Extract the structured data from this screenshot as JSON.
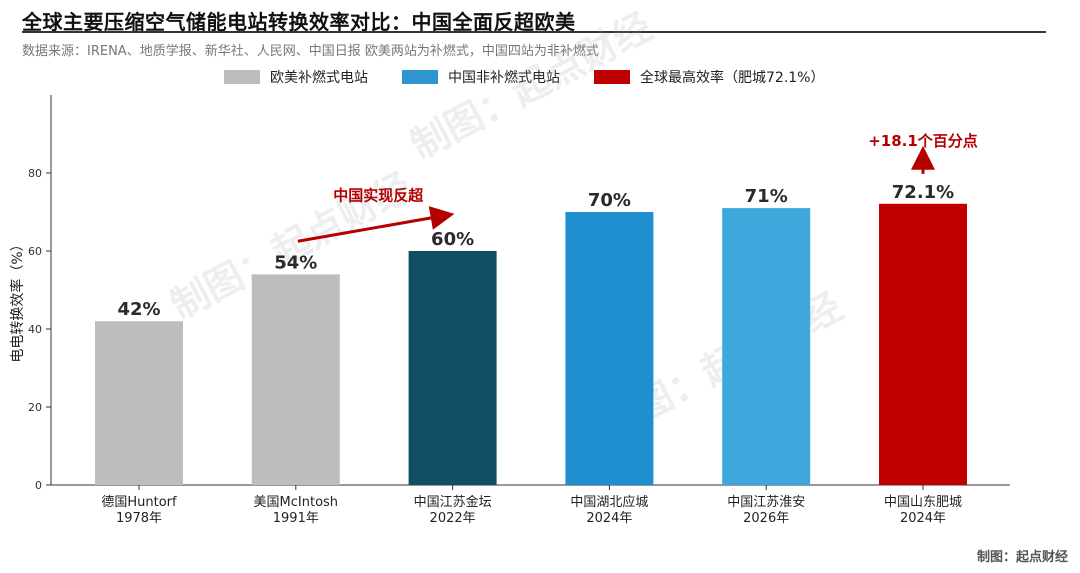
{
  "title": "全球主要压缩空气储能电站转换效率对比：中国全面反超欧美",
  "subtitle": "数据来源：IRENA、地质学报、新华社、人民网、中国日报 欧美两站为补燃式，中国四站为非补燃式",
  "source_note": "制图：起点财经",
  "watermark": "制图：起点财经",
  "legend": [
    {
      "label": "欧美补燃式电站",
      "color": "#bdbdbd"
    },
    {
      "label": "中国非补燃式电站",
      "color": "#2f95d1"
    },
    {
      "label": "全球最高效率（肥城72.1%）",
      "color": "#c00000"
    }
  ],
  "chart_data": {
    "type": "bar",
    "ylabel": "电电转换效率（%）",
    "ylim": [
      0,
      100
    ],
    "yticks": [
      0,
      20,
      40,
      60,
      80
    ],
    "grid": false,
    "bars": [
      {
        "name": "德国Huntorf",
        "year": "1978年",
        "value": 42,
        "label": "42%",
        "color": "#bdbdbd"
      },
      {
        "name": "美国McIntosh",
        "year": "1991年",
        "value": 54,
        "label": "54%",
        "color": "#bdbdbd"
      },
      {
        "name": "中国江苏金坛",
        "year": "2022年",
        "value": 60,
        "label": "60%",
        "color": "#114d63"
      },
      {
        "name": "中国湖北应城",
        "year": "2024年",
        "value": 70,
        "label": "70%",
        "color": "#1f8fd0"
      },
      {
        "name": "中国江苏淮安",
        "year": "2026年",
        "value": 71,
        "label": "71%",
        "color": "#3ea8dd"
      },
      {
        "name": "中国山东肥城",
        "year": "2024年",
        "value": 72.1,
        "label": "72.1%",
        "color": "#c00000"
      }
    ],
    "annotations": {
      "overtake": {
        "text": "中国实现反超",
        "color": "#b50000"
      },
      "increase": {
        "text": "+18.1个百分点",
        "color": "#b50000"
      }
    }
  }
}
